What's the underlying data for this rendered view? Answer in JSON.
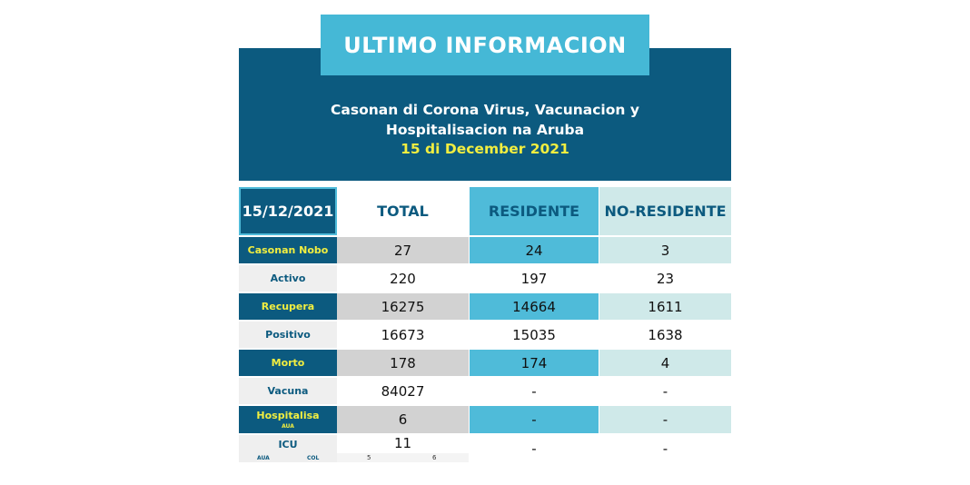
{
  "banner": "ULTIMO INFORMACION",
  "header": {
    "line1": "Casonan di Corona Virus, Vacunacion y",
    "line2": "Hospitalisacion na Aruba",
    "date": "15 di December 2021"
  },
  "table": {
    "columns": [
      "15/12/2021",
      "TOTAL",
      "RESIDENTE",
      "NO-RESIDENTE"
    ],
    "rows": [
      {
        "label": "Casonan Nobo",
        "total": "27",
        "residente": "24",
        "no_residente": "3"
      },
      {
        "label": "Activo",
        "total": "220",
        "residente": "197",
        "no_residente": "23"
      },
      {
        "label": "Recupera",
        "total": "16275",
        "residente": "14664",
        "no_residente": "1611"
      },
      {
        "label": "Positivo",
        "total": "16673",
        "residente": "15035",
        "no_residente": "1638"
      },
      {
        "label": "Morto",
        "total": "178",
        "residente": "174",
        "no_residente": "4"
      },
      {
        "label": "Vacuna",
        "total": "84027",
        "residente": "-",
        "no_residente": "-"
      },
      {
        "label": "Hospitalisa",
        "sublabel": "AUA",
        "total": "6",
        "residente": "-",
        "no_residente": "-"
      },
      {
        "label": "ICU",
        "total": "11",
        "residente": "-",
        "no_residente": "-"
      }
    ],
    "icu_breakdown": {
      "aua_label": "AUA",
      "col_label": "COL",
      "aua_value": "5",
      "col_value": "6"
    }
  },
  "colors": {
    "dark_blue": "#0c5a7f",
    "cyan": "#45b8d6",
    "yellow": "#f2ee40",
    "pale": "#cfe9e9",
    "grey": "#d2d2d2"
  }
}
